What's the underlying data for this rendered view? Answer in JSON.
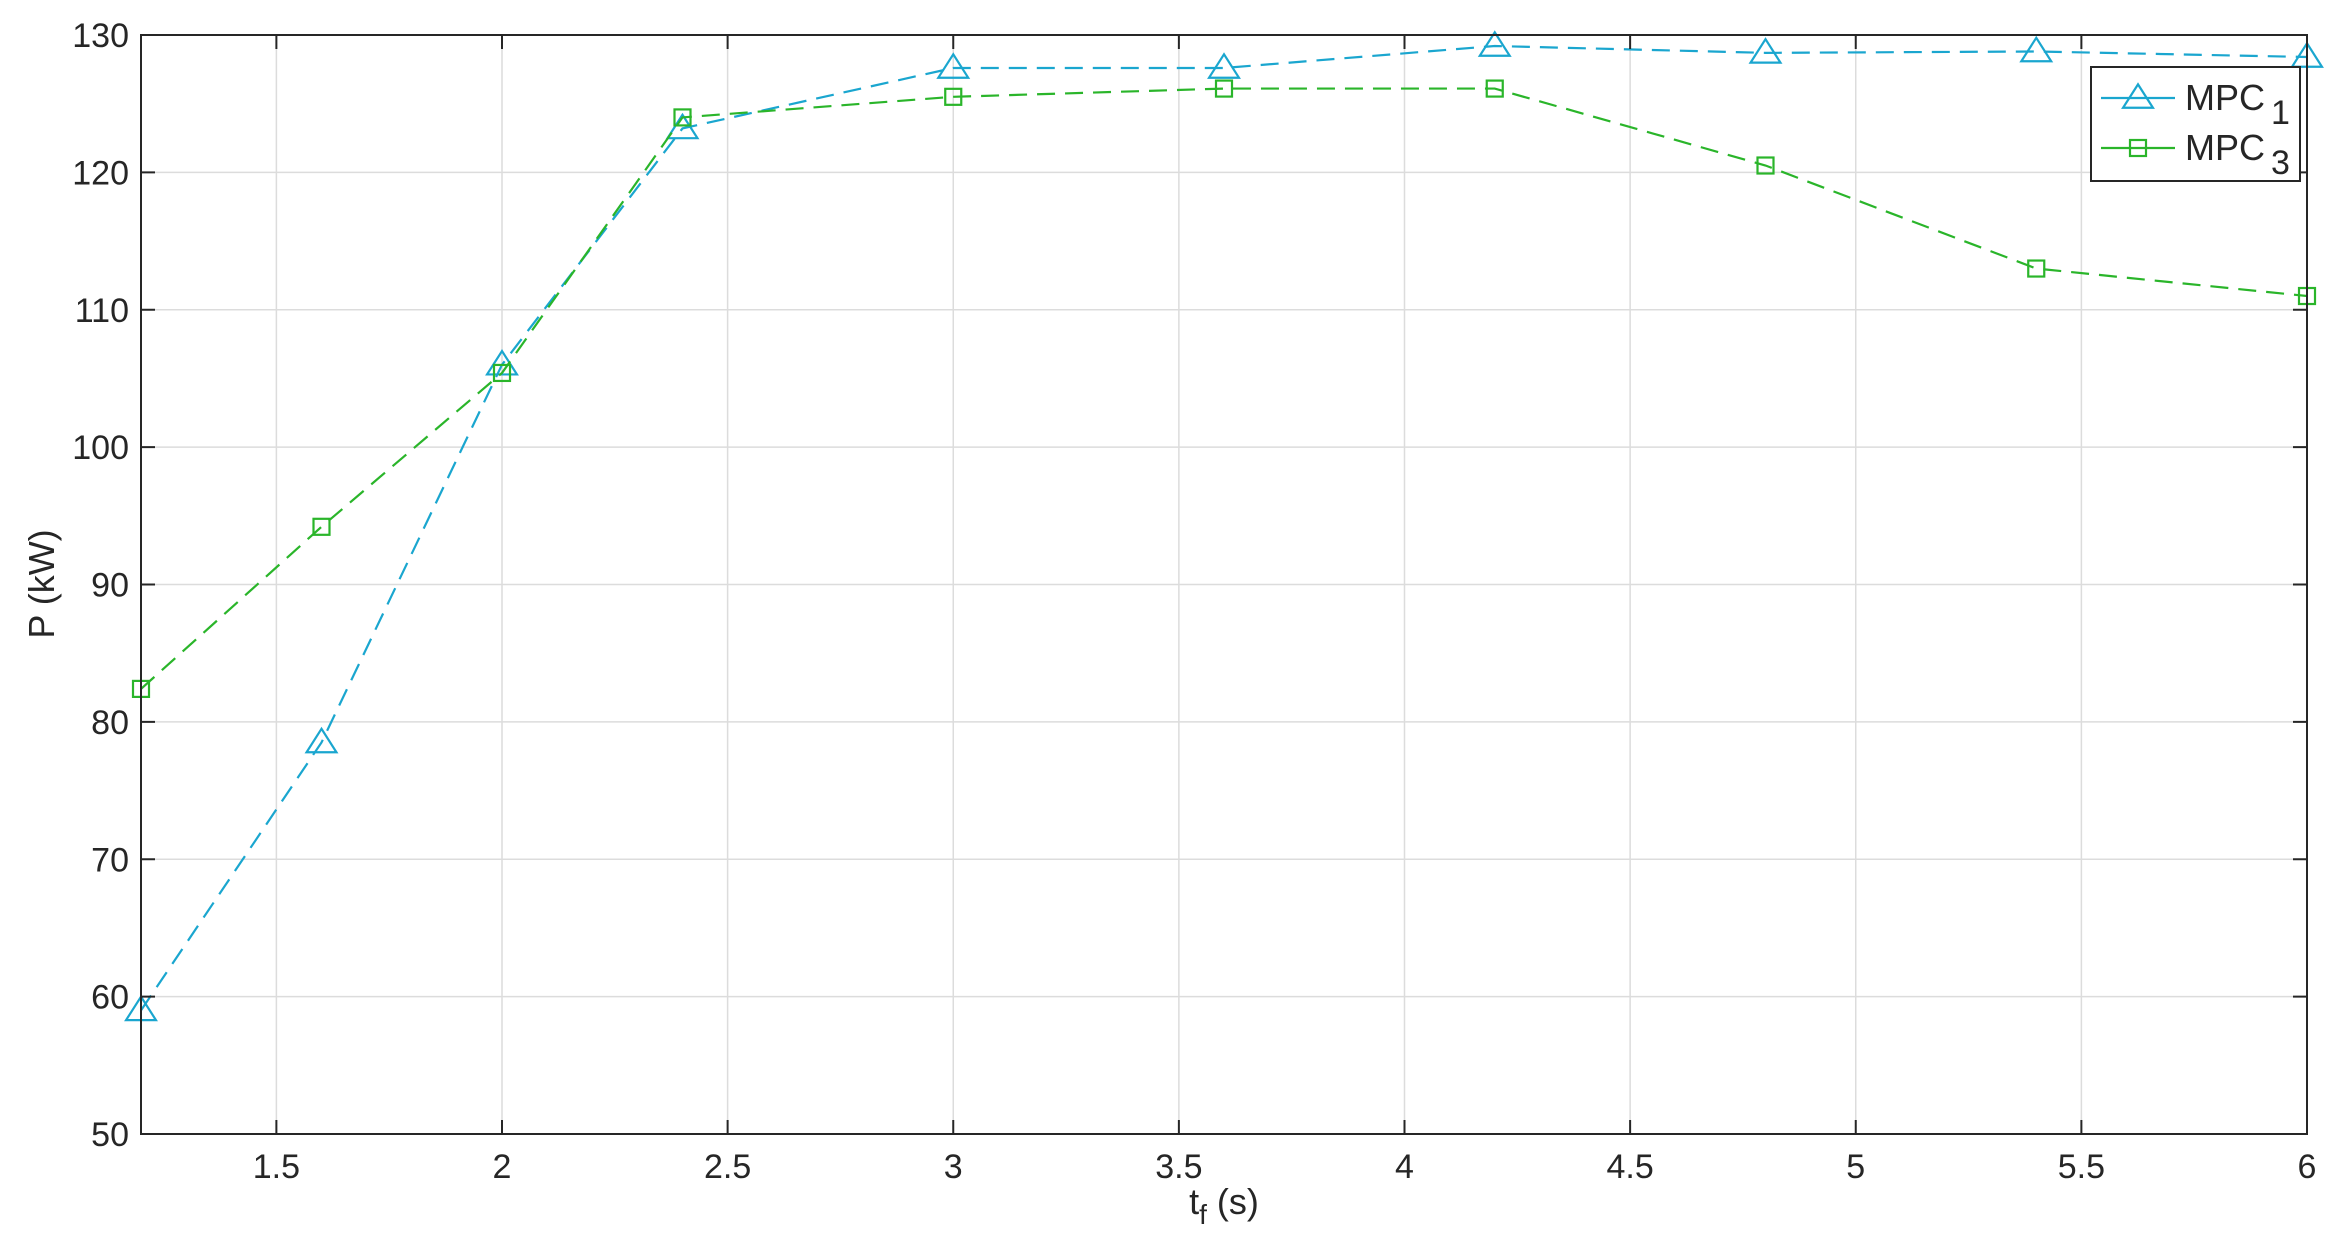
{
  "chart_data": {
    "type": "line",
    "xlabel": {
      "main": "t",
      "sub": "f",
      "unit": "(s)"
    },
    "ylabel": "P (kW)",
    "xlim": [
      1.2,
      6.0
    ],
    "ylim": [
      50,
      130
    ],
    "xticks": [
      1.5,
      2,
      2.5,
      3,
      3.5,
      4,
      4.5,
      5,
      5.5,
      6
    ],
    "xtick_labels": [
      "1.5",
      "2",
      "2.5",
      "3",
      "3.5",
      "4",
      "4.5",
      "5",
      "5.5",
      "6"
    ],
    "yticks": [
      50,
      60,
      70,
      80,
      90,
      100,
      110,
      120,
      130
    ],
    "ytick_labels": [
      "50",
      "60",
      "70",
      "80",
      "90",
      "100",
      "110",
      "120",
      "130"
    ],
    "grid": true,
    "legend_position": "top-right",
    "x": [
      1.2,
      1.6,
      2.0,
      2.4,
      3.0,
      3.6,
      4.2,
      4.8,
      5.4,
      6.0
    ],
    "series": [
      {
        "name": "MPC",
        "name_sub": "1",
        "color": "#1aa6cf",
        "marker": "triangle",
        "line_style": "dashed",
        "values": [
          59.0,
          78.5,
          106.0,
          123.2,
          127.6,
          127.6,
          129.2,
          128.7,
          128.8,
          128.4
        ]
      },
      {
        "name": "MPC",
        "name_sub": "3",
        "color": "#2ab52a",
        "marker": "square",
        "line_style": "dashed",
        "values": [
          82.4,
          94.2,
          105.4,
          124.0,
          125.5,
          126.1,
          126.1,
          120.5,
          113.0,
          111.0
        ]
      }
    ]
  }
}
